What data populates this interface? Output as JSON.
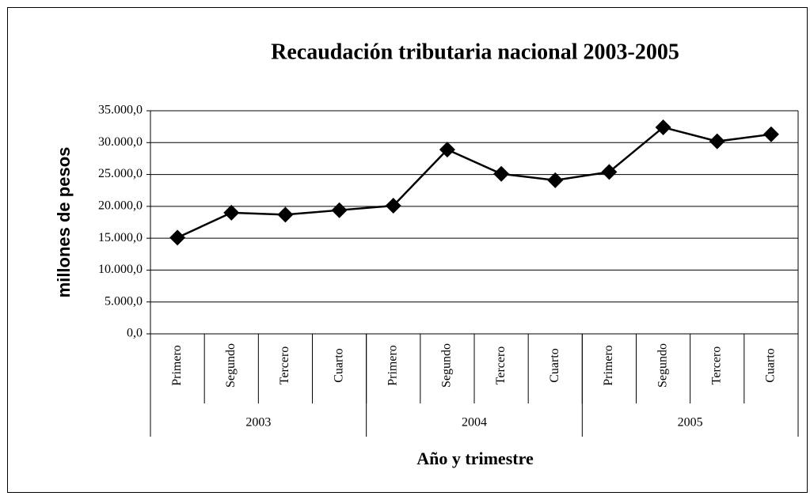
{
  "chart_data": {
    "type": "line",
    "title": "Recaudación tributaria nacional 2003-2005",
    "y_label": "millones de pesos",
    "x_label": "Año y trimestre",
    "categories": [
      "Primero",
      "Segundo",
      "Tercero",
      "Cuarto",
      "Primero",
      "Segundo",
      "Tercero",
      "Cuarto",
      "Primero",
      "Segundo",
      "Tercero",
      "Cuarto"
    ],
    "category_groups": [
      "2003",
      "2004",
      "2005"
    ],
    "values": [
      15100,
      19000,
      18700,
      19400,
      20100,
      28900,
      25100,
      24100,
      25400,
      32400,
      30200,
      31300
    ],
    "color": "#000000",
    "marker": "diamond",
    "ylim": [
      0,
      35000
    ],
    "yticks": [
      {
        "value": 0,
        "label": "0,0"
      },
      {
        "value": 5000,
        "label": "5.000,0"
      },
      {
        "value": 10000,
        "label": "10.000,0"
      },
      {
        "value": 15000,
        "label": "15.000,0"
      },
      {
        "value": 20000,
        "label": "20.000,0"
      },
      {
        "value": 25000,
        "label": "25.000,0"
      },
      {
        "value": 30000,
        "label": "30.000,0"
      },
      {
        "value": 35000,
        "label": "35.000,0"
      }
    ],
    "grid": true
  }
}
